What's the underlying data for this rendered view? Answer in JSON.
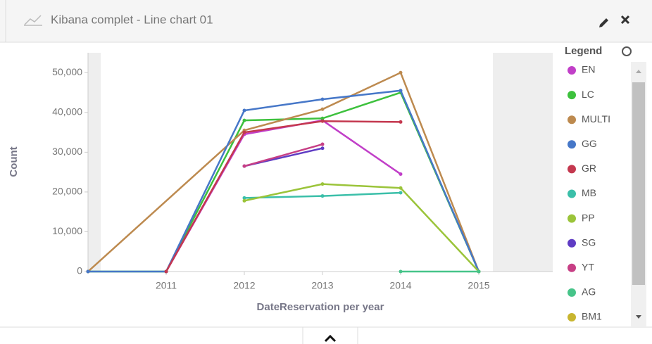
{
  "header": {
    "title": "Kibana complet - Line chart 01"
  },
  "chart_data": {
    "type": "line",
    "xlabel": "DateReservation per year",
    "ylabel": "Count",
    "legend_title": "Legend",
    "xlim": [
      2010,
      2016
    ],
    "xticks": [
      2011,
      2012,
      2013,
      2014,
      2015
    ],
    "ylim": [
      0,
      55000
    ],
    "yticks": [
      0,
      {
        "value": 10000,
        "label": "10,000"
      },
      {
        "value": 20000,
        "label": "20,000"
      },
      {
        "value": 30000,
        "label": "30,000"
      },
      {
        "value": 40000,
        "label": "40,000"
      },
      {
        "value": 50000,
        "label": "50,000"
      }
    ],
    "series": [
      {
        "name": "EN",
        "color": "#c13fc8",
        "x": [
          2011,
          2012,
          2013,
          2014
        ],
        "values": [
          0,
          34500,
          38000,
          24500
        ]
      },
      {
        "name": "LC",
        "color": "#3dc13d",
        "x": [
          2010,
          2011,
          2012,
          2013,
          2014,
          2015
        ],
        "values": [
          0,
          0,
          38000,
          38500,
          45000,
          0
        ]
      },
      {
        "name": "MULTI",
        "color": "#bd8a4f",
        "x": [
          2010,
          2012,
          2013,
          2014,
          2015
        ],
        "values": [
          0,
          35500,
          40800,
          50000,
          0
        ]
      },
      {
        "name": "GG",
        "color": "#4677c8",
        "x": [
          2010,
          2011,
          2012,
          2013,
          2014,
          2015
        ],
        "values": [
          0,
          0,
          40500,
          43300,
          45500,
          0
        ]
      },
      {
        "name": "GR",
        "color": "#c4384f",
        "x": [
          2011,
          2012,
          2013,
          2014
        ],
        "values": [
          0,
          35000,
          37800,
          37600
        ]
      },
      {
        "name": "MB",
        "color": "#3bbfa9",
        "x": [
          2012,
          2013,
          2014
        ],
        "values": [
          18500,
          19000,
          19800
        ]
      },
      {
        "name": "PP",
        "color": "#9bc43a",
        "x": [
          2012,
          2013,
          2014,
          2015
        ],
        "values": [
          17800,
          22000,
          21000,
          0
        ]
      },
      {
        "name": "SG",
        "color": "#5f3cc4",
        "x": [
          2012,
          2013
        ],
        "values": [
          26500,
          31000
        ]
      },
      {
        "name": "YT",
        "color": "#c73f85",
        "x": [
          2012,
          2013
        ],
        "values": [
          26500,
          32000
        ]
      },
      {
        "name": "AG",
        "color": "#46c489",
        "x": [
          2014,
          2015
        ],
        "values": [
          0,
          0
        ]
      },
      {
        "name": "BM1",
        "color": "#c8b52f",
        "x": [],
        "values": []
      }
    ]
  }
}
